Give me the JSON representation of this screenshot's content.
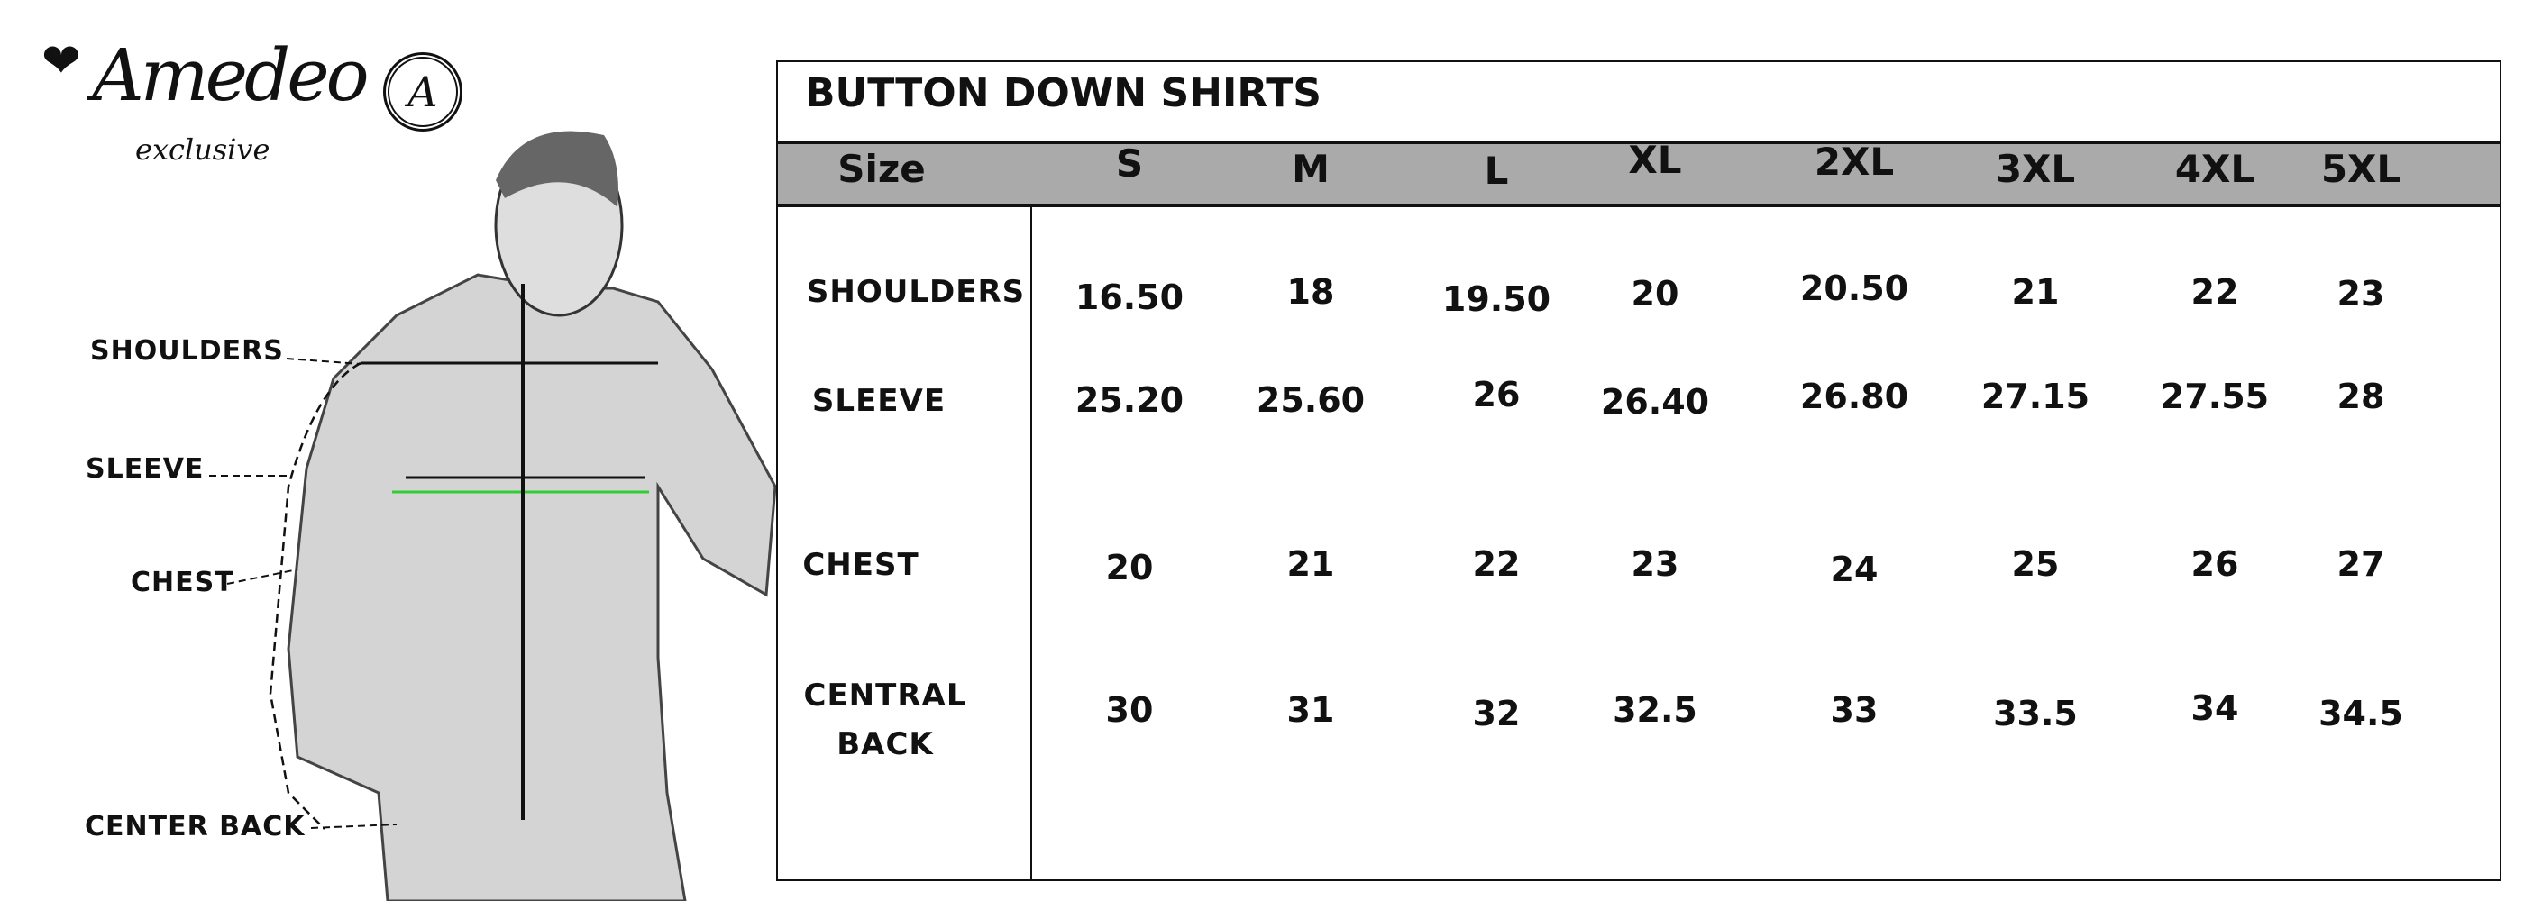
{
  "brand": {
    "name": "Amedeo",
    "tagline": "exclusive",
    "seal_letter": "A"
  },
  "diagram_labels": [
    "SHOULDERS",
    "SLEEVE",
    "CHEST",
    "CENTER BACK"
  ],
  "table": {
    "title": "BUTTON DOWN SHIRTS",
    "header_label": "Size",
    "sizes": [
      "S",
      "M",
      "L",
      "XL",
      "2XL",
      "3XL",
      "4XL",
      "5XL"
    ],
    "rows": [
      {
        "label": "SHOULDERS",
        "values": [
          "16.50",
          "18",
          "19.50",
          "20",
          "20.50",
          "21",
          "22",
          "23"
        ]
      },
      {
        "label": "SLEEVE",
        "values": [
          "25.20",
          "25.60",
          "26",
          "26.40",
          "26.80",
          "27.15",
          "27.55",
          "28"
        ]
      },
      {
        "label": "CHEST",
        "values": [
          "20",
          "21",
          "22",
          "23",
          "24",
          "25",
          "26",
          "27"
        ]
      },
      {
        "label": "CENTRAL BACK",
        "values": [
          "30",
          "31",
          "32",
          "32.5",
          "33",
          "33.5",
          "34",
          "34.5"
        ]
      }
    ]
  },
  "colors": {
    "header_band": "#aaaaaa",
    "chest_line": "#33cc33"
  }
}
